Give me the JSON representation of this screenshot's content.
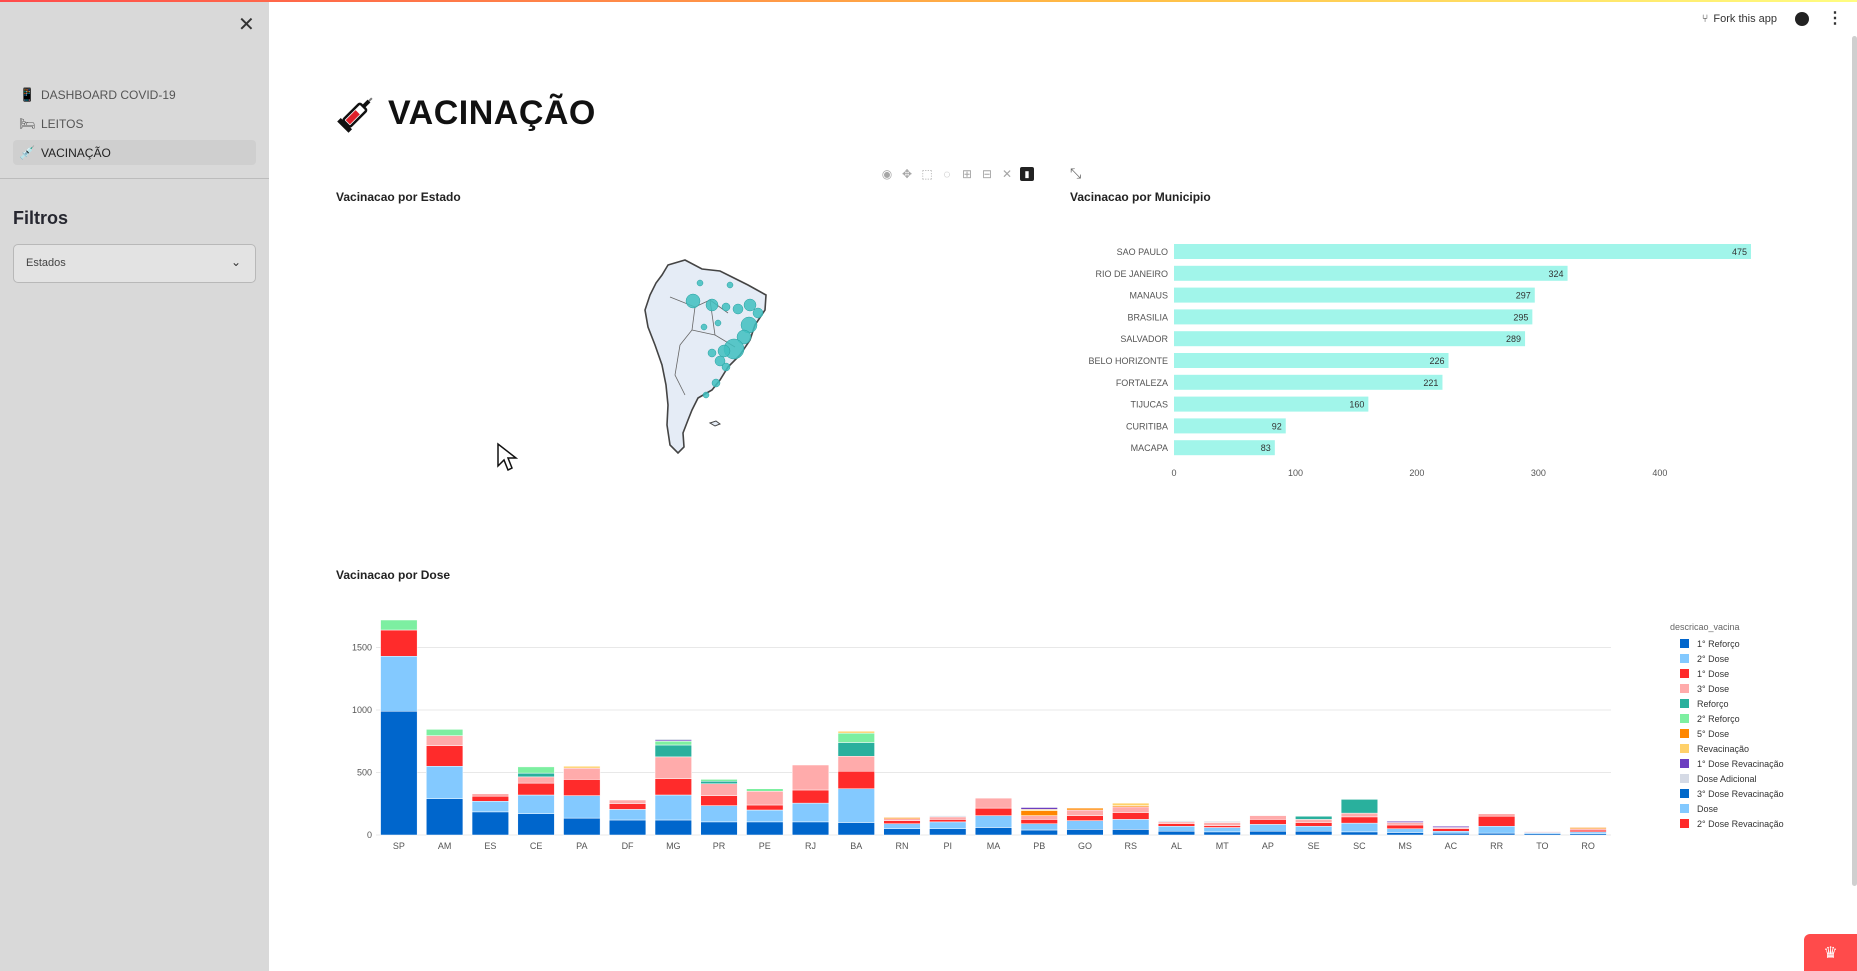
{
  "header": {
    "fork_label": "Fork this app",
    "icons": [
      "fork-icon",
      "github-icon",
      "kebab-menu-icon"
    ]
  },
  "sidebar": {
    "close_icon": "close-icon",
    "nav": [
      {
        "label": "DASHBOARD COVID-19",
        "icon": "dashboard-icon"
      },
      {
        "label": "LEITOS",
        "icon": "bed-icon"
      },
      {
        "label": "VACINAÇÃO",
        "icon": "syringe-icon",
        "active": true
      }
    ],
    "filters_title": "Filtros",
    "states_select": {
      "value": "Estados",
      "icon": "chevron-down-icon"
    }
  },
  "main": {
    "title": "VACINAÇÃO",
    "section_estado": "Vacinacao por Estado",
    "section_municipio": "Vacinacao por Municipio",
    "section_dose": "Vacinacao por Dose",
    "modebar_icons": [
      "camera-icon",
      "pan-icon",
      "box-select-icon",
      "lasso-icon",
      "zoom-in-icon",
      "zoom-out-icon",
      "autoscale-icon",
      "plotly-logo-icon"
    ],
    "fullscreen_icon": "fullscreen-icon"
  },
  "colors": {
    "accent": "#ff4b4b",
    "bar_municipio": "#a1f5ea",
    "map_bubble": "#3fbfbf"
  },
  "chart_data": [
    {
      "type": "bar",
      "orientation": "horizontal",
      "title": "Vacinacao por Municipio",
      "categories": [
        "SAO PAULO",
        "RIO DE JANEIRO",
        "MANAUS",
        "BRASILIA",
        "SALVADOR",
        "BELO HORIZONTE",
        "FORTALEZA",
        "TIJUCAS",
        "CURITIBA",
        "MACAPA"
      ],
      "values": [
        475,
        324,
        297,
        295,
        289,
        226,
        221,
        160,
        92,
        83
      ],
      "xticks": [
        0,
        100,
        200,
        300,
        400
      ],
      "xlim": [
        0,
        475
      ]
    },
    {
      "type": "bar",
      "stacked": true,
      "title": "Vacinacao por Dose",
      "legend_title": "descricao_vacina",
      "legend_placement": "right",
      "categories": [
        "SP",
        "AM",
        "ES",
        "CE",
        "PA",
        "DF",
        "MG",
        "PR",
        "PE",
        "RJ",
        "BA",
        "RN",
        "PI",
        "MA",
        "PB",
        "GO",
        "RS",
        "AL",
        "MT",
        "AP",
        "SE",
        "SC",
        "MS",
        "AC",
        "RR",
        "TO",
        "RO"
      ],
      "yticks": [
        0,
        500,
        1000,
        1500
      ],
      "ylim": [
        0,
        1800
      ],
      "series": [
        {
          "name": "1° Reforço",
          "color": "#0066cc",
          "values": [
            990,
            290,
            185,
            170,
            135,
            120,
            120,
            105,
            105,
            105,
            100,
            50,
            50,
            60,
            40,
            45,
            45,
            30,
            25,
            30,
            30,
            25,
            20,
            15,
            15,
            10,
            10
          ]
        },
        {
          "name": "2° Dose",
          "color": "#83c9ff",
          "values": [
            440,
            260,
            85,
            150,
            180,
            85,
            200,
            130,
            95,
            150,
            270,
            40,
            55,
            95,
            50,
            70,
            80,
            40,
            35,
            55,
            40,
            70,
            30,
            15,
            55,
            10,
            15
          ]
        },
        {
          "name": "1° Dose",
          "color": "#ff2b2b",
          "values": [
            210,
            165,
            40,
            95,
            130,
            45,
            130,
            80,
            40,
            105,
            140,
            25,
            20,
            60,
            35,
            40,
            55,
            20,
            15,
            40,
            30,
            50,
            30,
            20,
            80,
            5,
            15
          ]
        },
        {
          "name": "3° Dose",
          "color": "#ffabab",
          "values": [
            0,
            80,
            20,
            50,
            90,
            30,
            175,
            95,
            110,
            200,
            120,
            15,
            20,
            80,
            30,
            45,
            45,
            15,
            25,
            30,
            25,
            30,
            20,
            10,
            20,
            5,
            10
          ]
        },
        {
          "name": "Reforço",
          "color": "#29b09d",
          "values": [
            0,
            0,
            0,
            30,
            0,
            0,
            95,
            20,
            0,
            0,
            110,
            0,
            0,
            0,
            0,
            0,
            0,
            0,
            0,
            0,
            25,
            110,
            0,
            0,
            0,
            0,
            0
          ]
        },
        {
          "name": "2° Reforço",
          "color": "#7defa1",
          "values": [
            80,
            50,
            0,
            50,
            0,
            0,
            30,
            15,
            20,
            0,
            75,
            0,
            0,
            0,
            0,
            0,
            0,
            0,
            0,
            0,
            0,
            0,
            0,
            0,
            0,
            0,
            0
          ]
        },
        {
          "name": "5° Dose",
          "color": "#ff8700",
          "values": [
            0,
            0,
            0,
            0,
            0,
            0,
            0,
            0,
            0,
            0,
            0,
            10,
            0,
            0,
            40,
            15,
            10,
            0,
            0,
            0,
            0,
            0,
            0,
            0,
            0,
            0,
            10
          ]
        },
        {
          "name": "Revacinação",
          "color": "#ffd16a",
          "values": [
            0,
            0,
            0,
            0,
            15,
            0,
            0,
            0,
            0,
            0,
            15,
            0,
            0,
            0,
            10,
            0,
            20,
            0,
            0,
            0,
            0,
            0,
            0,
            0,
            0,
            0,
            0
          ]
        },
        {
          "name": "1° Dose Revacinação",
          "color": "#6d3fc0",
          "values": [
            0,
            0,
            0,
            0,
            0,
            0,
            10,
            0,
            0,
            0,
            0,
            0,
            0,
            0,
            15,
            0,
            0,
            0,
            0,
            0,
            0,
            0,
            10,
            10,
            0,
            0,
            0
          ]
        },
        {
          "name": "Dose Adicional",
          "color": "#d5dae5",
          "values": [
            0,
            0,
            0,
            0,
            0,
            0,
            10,
            0,
            0,
            0,
            0,
            0,
            10,
            0,
            0,
            0,
            0,
            10,
            10,
            0,
            0,
            0,
            0,
            0,
            0,
            0,
            0
          ]
        },
        {
          "name": "3° Dose Revacinação",
          "color": "#0068c9",
          "values": [
            0,
            0,
            0,
            0,
            0,
            0,
            0,
            0,
            0,
            0,
            0,
            0,
            0,
            0,
            0,
            0,
            0,
            0,
            0,
            0,
            0,
            0,
            0,
            0,
            0,
            0,
            0
          ]
        },
        {
          "name": "Dose",
          "color": "#83c9ff",
          "values": [
            0,
            0,
            0,
            0,
            0,
            0,
            0,
            0,
            0,
            0,
            0,
            0,
            0,
            0,
            0,
            0,
            0,
            0,
            0,
            0,
            0,
            0,
            0,
            0,
            0,
            0,
            0
          ]
        },
        {
          "name": "2° Dose Revacinação",
          "color": "#ff2b2b",
          "values": [
            0,
            0,
            0,
            0,
            0,
            0,
            0,
            0,
            0,
            0,
            0,
            0,
            0,
            0,
            0,
            0,
            0,
            0,
            0,
            0,
            0,
            0,
            0,
            0,
            0,
            0,
            0
          ]
        }
      ]
    },
    {
      "type": "scatter",
      "subtype": "bubble-map",
      "title": "Vacinacao por Estado",
      "region": "South America"
    }
  ]
}
